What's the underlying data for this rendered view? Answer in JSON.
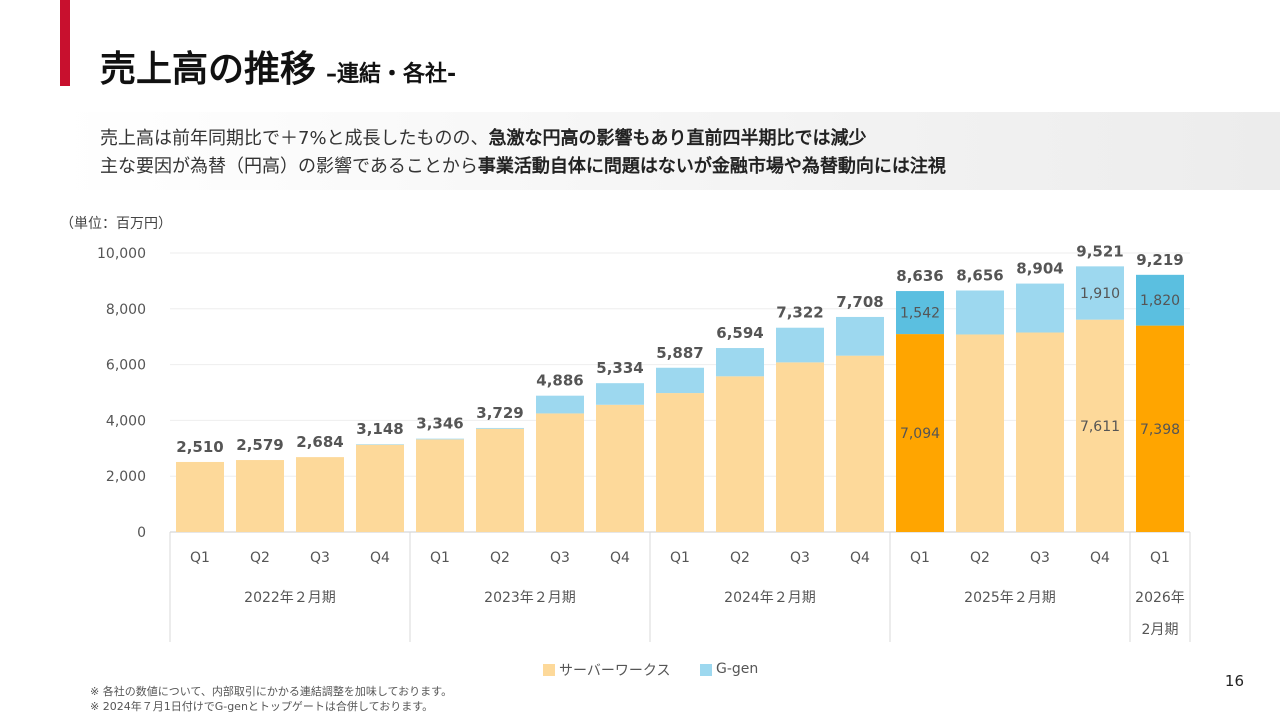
{
  "header": {
    "title": "売上高の推移",
    "subtitle": "–連結・各社-"
  },
  "summary": {
    "line1_normal": "売上高は前年同期比で＋7%と成長したものの、",
    "line1_bold": "急激な円高の影響もあり直前四半期比では減少",
    "line2_normal": "主な要因が為替（円高）の影響であることから",
    "line2_bold": "事業活動自体に問題はないが金融市場や為替動向には注視"
  },
  "unit_label": "（単位：百万円）",
  "colors": {
    "accent": "#c8102e",
    "serverworks": "#fdd99a",
    "serverworks_highlight": "#ffa500",
    "ggen": "#9dd8ef",
    "ggen_highlight": "#5bbfe0"
  },
  "chart_data": {
    "type": "bar",
    "stacked": true,
    "categories": [
      "Q1",
      "Q2",
      "Q3",
      "Q4",
      "Q1",
      "Q2",
      "Q3",
      "Q4",
      "Q1",
      "Q2",
      "Q3",
      "Q4",
      "Q1",
      "Q2",
      "Q3",
      "Q4",
      "Q1"
    ],
    "groups": [
      {
        "label": "2022年２月期",
        "span": 4
      },
      {
        "label": "2023年２月期",
        "span": 4
      },
      {
        "label": "2024年２月期",
        "span": 4
      },
      {
        "label": "2025年２月期",
        "span": 4
      },
      {
        "label": "2026年\n2月期",
        "span": 1
      }
    ],
    "series": [
      {
        "name": "サーバーワークス",
        "values": [
          2510,
          2579,
          2684,
          3128,
          3320,
          3700,
          4250,
          4560,
          4980,
          5580,
          6080,
          6320,
          7094,
          7080,
          7150,
          7611,
          7398
        ]
      },
      {
        "name": "G-gen",
        "values": [
          0,
          0,
          0,
          20,
          26,
          29,
          636,
          774,
          907,
          1014,
          1242,
          1388,
          1542,
          1576,
          1754,
          1910,
          1820
        ]
      }
    ],
    "totals": [
      "2,510",
      "2,579",
      "2,684",
      "3,148",
      "3,346",
      "3,729",
      "4,886",
      "5,334",
      "5,887",
      "6,594",
      "7,322",
      "7,708",
      "8,636",
      "8,656",
      "8,904",
      "9,521",
      "9,219"
    ],
    "segment_labels": [
      {
        "index": 12,
        "series": 0,
        "text": "7,094"
      },
      {
        "index": 12,
        "series": 1,
        "text": "1,542"
      },
      {
        "index": 15,
        "series": 0,
        "text": "7,611"
      },
      {
        "index": 15,
        "series": 1,
        "text": "1,910"
      },
      {
        "index": 16,
        "series": 0,
        "text": "7,398"
      },
      {
        "index": 16,
        "series": 1,
        "text": "1,820"
      }
    ],
    "highlight_indices": [
      12,
      16
    ],
    "ylim": [
      0,
      10000
    ],
    "yticks": [
      "0",
      "2,000",
      "4,000",
      "6,000",
      "8,000",
      "10,000"
    ],
    "legend_position": "bottom",
    "grid": true
  },
  "footnotes": [
    "※ 各社の数値について、内部取引にかかる連結調整を加味しております。",
    "※ 2024年７月1日付けでG-genとトップゲートは合併しております。"
  ],
  "page_number": "16"
}
